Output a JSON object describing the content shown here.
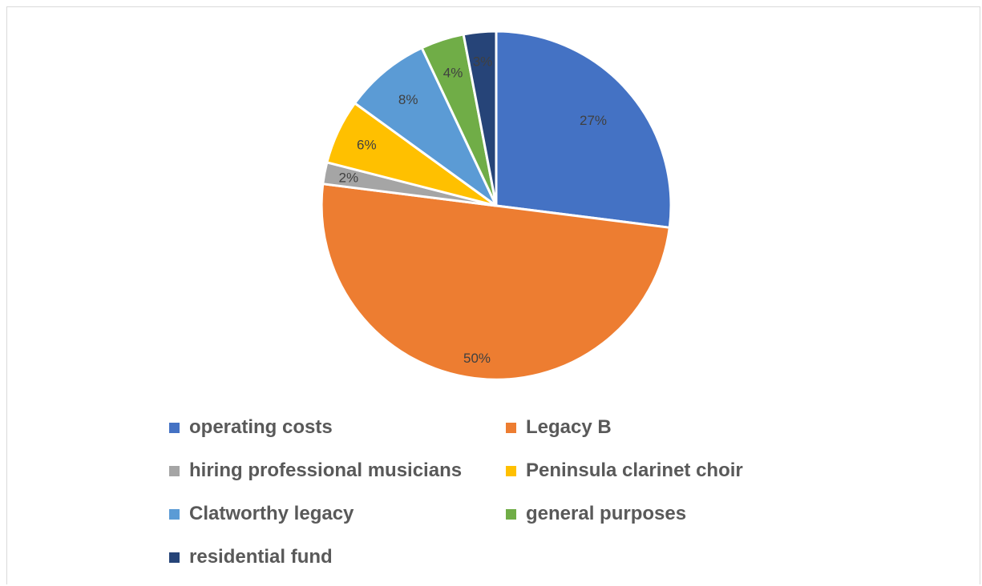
{
  "chart_data": {
    "type": "pie",
    "title": "",
    "categories": [
      "operating costs",
      "Legacy B",
      "hiring professional musicians",
      "Peninsula clarinet choir",
      "Clatworthy legacy",
      "general purposes",
      "residential fund"
    ],
    "values": [
      27,
      50,
      2,
      6,
      8,
      4,
      3
    ],
    "labels": [
      "27%",
      "50%",
      "2%",
      "6%",
      "8%",
      "4%",
      "3%"
    ],
    "colors": [
      "#4472C4",
      "#ED7D31",
      "#A5A5A5",
      "#FFC000",
      "#5B9BD5",
      "#70AD47",
      "#264478"
    ],
    "legend_position": "bottom"
  }
}
